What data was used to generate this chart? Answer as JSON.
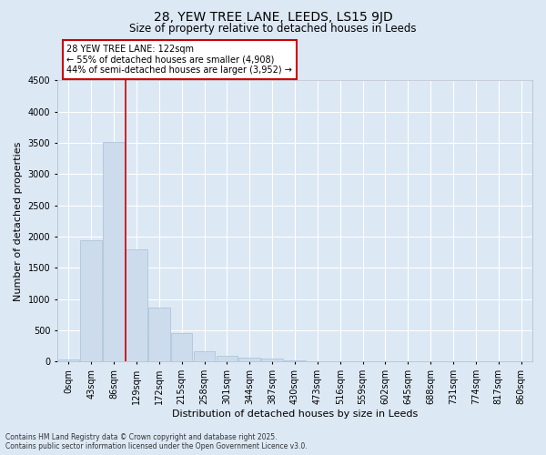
{
  "title1": "28, YEW TREE LANE, LEEDS, LS15 9JD",
  "title2": "Size of property relative to detached houses in Leeds",
  "xlabel": "Distribution of detached houses by size in Leeds",
  "ylabel": "Number of detached properties",
  "bins": [
    "0sqm",
    "43sqm",
    "86sqm",
    "129sqm",
    "172sqm",
    "215sqm",
    "258sqm",
    "301sqm",
    "344sqm",
    "387sqm",
    "430sqm",
    "473sqm",
    "516sqm",
    "559sqm",
    "602sqm",
    "645sqm",
    "688sqm",
    "731sqm",
    "774sqm",
    "817sqm",
    "860sqm"
  ],
  "values": [
    30,
    1950,
    3520,
    1800,
    860,
    460,
    165,
    100,
    70,
    45,
    15,
    6,
    3,
    1,
    0,
    0,
    0,
    0,
    0,
    0,
    0
  ],
  "bar_color": "#ccdcec",
  "bar_edgecolor": "#a8c0d8",
  "vline_x": 2.5,
  "vline_color": "#cc0000",
  "annotation_text": "28 YEW TREE LANE: 122sqm\n← 55% of detached houses are smaller (4,908)\n44% of semi-detached houses are larger (3,952) →",
  "annotation_box_facecolor": "white",
  "annotation_box_edgecolor": "#cc0000",
  "ylim": [
    0,
    4500
  ],
  "yticks": [
    0,
    500,
    1000,
    1500,
    2000,
    2500,
    3000,
    3500,
    4000,
    4500
  ],
  "bg_color": "#dce8f4",
  "plot_bg_color": "#dce8f4",
  "footnote1": "Contains HM Land Registry data © Crown copyright and database right 2025.",
  "footnote2": "Contains public sector information licensed under the Open Government Licence v3.0.",
  "title1_fontsize": 10,
  "title2_fontsize": 8.5,
  "tick_fontsize": 7,
  "label_fontsize": 8,
  "annot_fontsize": 7
}
